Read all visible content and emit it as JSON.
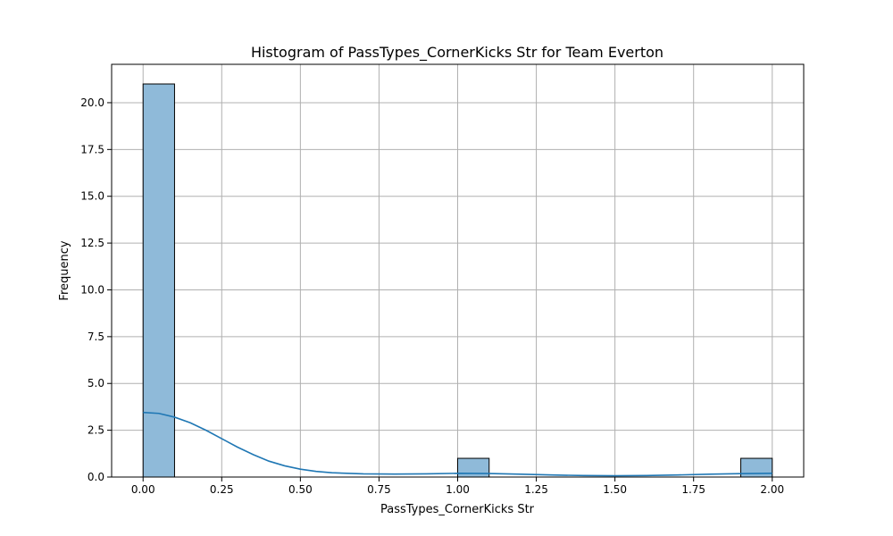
{
  "chart_data": {
    "type": "bar",
    "title": "Histogram of PassTypes_CornerKicks Str for Team Everton",
    "xlabel": "PassTypes_CornerKicks Str",
    "ylabel": "Frequency",
    "xlim": [
      -0.1,
      2.1
    ],
    "ylim": [
      0,
      22.05
    ],
    "xticks": [
      "0.00",
      "0.25",
      "0.50",
      "0.75",
      "1.00",
      "1.25",
      "1.50",
      "1.75",
      "2.00"
    ],
    "yticks": [
      "0.0",
      "2.5",
      "5.0",
      "7.5",
      "10.0",
      "12.5",
      "15.0",
      "17.5",
      "20.0"
    ],
    "grid": true,
    "bin_width": 0.1,
    "bins": [
      {
        "start": 0.0,
        "count": 21
      },
      {
        "start": 1.0,
        "count": 1
      },
      {
        "start": 1.9,
        "count": 1
      }
    ],
    "kde": {
      "x": [
        0.0,
        0.05,
        0.1,
        0.15,
        0.2,
        0.25,
        0.3,
        0.35,
        0.4,
        0.45,
        0.5,
        0.55,
        0.6,
        0.7,
        0.8,
        0.9,
        1.0,
        1.1,
        1.2,
        1.3,
        1.4,
        1.5,
        1.6,
        1.7,
        1.8,
        1.9,
        2.0
      ],
      "y": [
        3.45,
        3.4,
        3.2,
        2.9,
        2.5,
        2.05,
        1.6,
        1.2,
        0.85,
        0.6,
        0.42,
        0.3,
        0.23,
        0.17,
        0.16,
        0.17,
        0.2,
        0.19,
        0.15,
        0.11,
        0.08,
        0.07,
        0.08,
        0.11,
        0.15,
        0.18,
        0.2
      ]
    },
    "colors": {
      "bar_fill": "#8fbad9",
      "bar_edge": "#000000",
      "kde_line": "#1f77b4",
      "grid": "#b0b0b0"
    }
  }
}
